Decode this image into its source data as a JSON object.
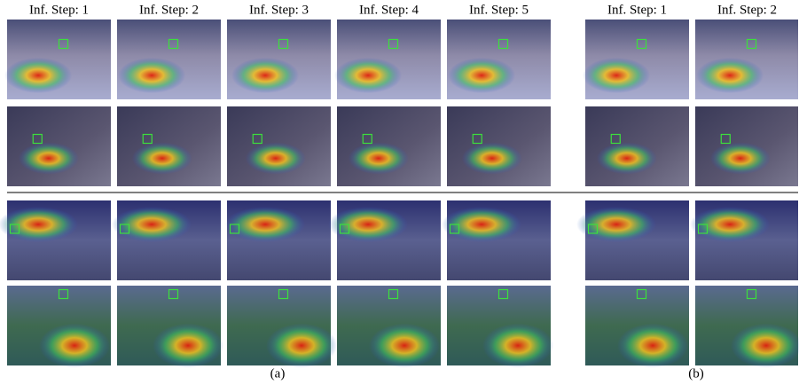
{
  "panel_a": {
    "headers": [
      "Inf. Step: 1",
      "Inf. Step: 2",
      "Inf. Step: 3",
      "Inf. Step: 4",
      "Inf. Step: 5"
    ],
    "caption": "(a)"
  },
  "panel_b": {
    "headers": [
      "Inf. Step: 1",
      "Inf. Step: 2"
    ],
    "caption": "(b)"
  }
}
